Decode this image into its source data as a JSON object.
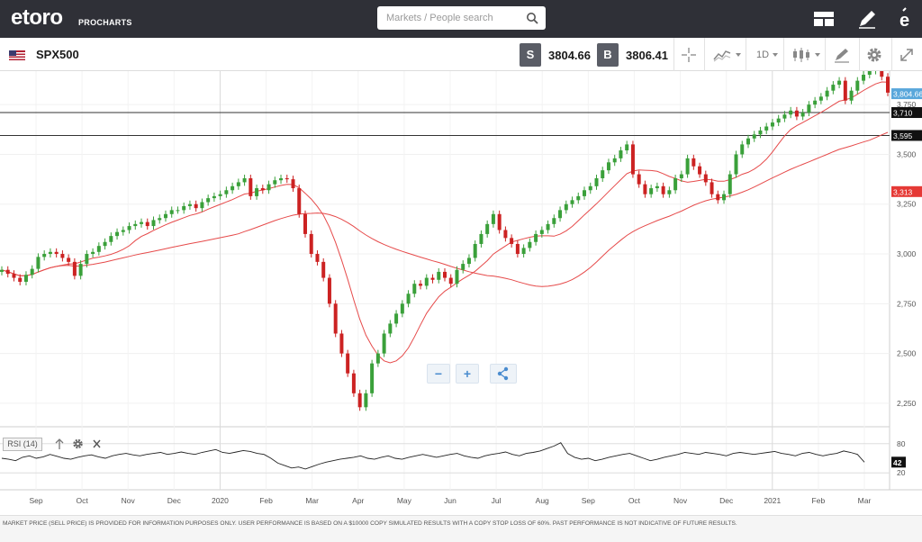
{
  "header": {
    "logo": "etoro",
    "logo_sub": "PROCHARTS",
    "search_placeholder": "Markets / People search"
  },
  "toolbar": {
    "symbol": "SPX500",
    "sell_label": "S",
    "sell_price": "3804.66",
    "buy_label": "B",
    "buy_price": "3806.41",
    "timeframe": "1D",
    "icons": [
      "crosshair-icon",
      "chart-type-icon",
      "indicators-icon",
      "drawing-icon",
      "settings-icon",
      "fullscreen-icon"
    ]
  },
  "chart_data": {
    "type": "line",
    "instrument": "SPX500",
    "style": "candlestick",
    "ylim": [
      2150,
      3900
    ],
    "y_ticks": [
      "3,750",
      "3,500",
      "3,250",
      "3,000",
      "2,750",
      "2,500",
      "2,250"
    ],
    "x_ticks": [
      "Sep",
      "Oct",
      "Nov",
      "Dec",
      "2020",
      "Feb",
      "Mar",
      "Apr",
      "May",
      "Jun",
      "Jul",
      "Aug",
      "Sep",
      "Oct",
      "Nov",
      "Dec",
      "2021",
      "Feb",
      "Mar"
    ],
    "price_labels": {
      "current": "3,804.66",
      "level_upper": "3,710",
      "level_lower": "3,595",
      "ma_long": "3,313"
    },
    "horizontal_levels": [
      3710,
      3595
    ],
    "series": [
      {
        "name": "Close",
        "values": [
          2920,
          2900,
          2880,
          2860,
          2895,
          2925,
          2985,
          3000,
          3010,
          3000,
          2980,
          2960,
          2890,
          2950,
          3000,
          3010,
          3040,
          3060,
          3090,
          3110,
          3120,
          3140,
          3150,
          3160,
          3140,
          3170,
          3180,
          3200,
          3220,
          3220,
          3240,
          3250,
          3230,
          3260,
          3280,
          3290,
          3300,
          3320,
          3340,
          3360,
          3380,
          3290,
          3330,
          3320,
          3350,
          3370,
          3380,
          3375,
          3330,
          3200,
          3100,
          3000,
          2960,
          2880,
          2750,
          2600,
          2500,
          2400,
          2300,
          2230,
          2300,
          2450,
          2500,
          2600,
          2650,
          2700,
          2750,
          2800,
          2850,
          2840,
          2880,
          2870,
          2910,
          2880,
          2850,
          2920,
          2950,
          2980,
          3050,
          3100,
          3150,
          3200,
          3120,
          3080,
          3050,
          3000,
          3030,
          3060,
          3100,
          3120,
          3150,
          3180,
          3220,
          3250,
          3270,
          3290,
          3320,
          3340,
          3380,
          3420,
          3460,
          3480,
          3520,
          3550,
          3400,
          3350,
          3300,
          3330,
          3340,
          3300,
          3320,
          3380,
          3400,
          3480,
          3440,
          3400,
          3360,
          3300,
          3270,
          3300,
          3400,
          3500,
          3550,
          3580,
          3600,
          3620,
          3640,
          3660,
          3680,
          3700,
          3720,
          3690,
          3710,
          3750,
          3770,
          3790,
          3820,
          3850,
          3870,
          3770,
          3820,
          3870,
          3900,
          3920,
          3930,
          3890,
          3810
        ]
      },
      {
        "name": "MA short"
      },
      {
        "name": "MA long"
      }
    ],
    "rsi": {
      "label": "RSI (14)",
      "period": 14,
      "levels": [
        "80",
        "20"
      ],
      "current": "42",
      "values": [
        50,
        48,
        45,
        52,
        55,
        50,
        53,
        58,
        54,
        50,
        48,
        52,
        55,
        57,
        53,
        50,
        55,
        58,
        60,
        57,
        55,
        58,
        60,
        62,
        58,
        60,
        63,
        60,
        58,
        62,
        65,
        68,
        62,
        60,
        63,
        66,
        64,
        60,
        58,
        50,
        40,
        35,
        30,
        32,
        28,
        33,
        38,
        42,
        45,
        48,
        50,
        52,
        55,
        50,
        48,
        52,
        55,
        50,
        48,
        52,
        55,
        58,
        55,
        52,
        55,
        58,
        60,
        55,
        52,
        50,
        55,
        58,
        60,
        63,
        58,
        55,
        60,
        62,
        65,
        70,
        75,
        82,
        60,
        52,
        48,
        50,
        45,
        48,
        52,
        55,
        58,
        60,
        55,
        50,
        45,
        48,
        52,
        55,
        58,
        62,
        60,
        58,
        62,
        60,
        58,
        55,
        60,
        62,
        60,
        58,
        60,
        62,
        64,
        60,
        58,
        55,
        60,
        62,
        58,
        55,
        58,
        60,
        65,
        62,
        58,
        42
      ]
    }
  },
  "controls": {
    "zoom_out": "−",
    "zoom_in": "+",
    "share_icon": "share-icon"
  },
  "rsi_controls": [
    "arrow-up-icon",
    "gear-icon",
    "close-icon"
  ],
  "disclaimer": "MARKET PRICE (SELL PRICE) IS PROVIDED FOR INFORMATION PURPOSES ONLY. USER PERFORMANCE IS BASED ON A $10000 COPY SIMULATED RESULTS WITH A COPY STOP LOSS OF 60%. PAST PERFORMANCE IS NOT INDICATIVE OF FUTURE RESULTS.",
  "colors": {
    "topbar": "#2f3037",
    "candle_up": "#3aa03a",
    "candle_down": "#cc2222",
    "ma_line": "#e64a4a",
    "current_price_label": "#59a7db",
    "ma_long_label": "#e53935",
    "level_label": "#111111"
  }
}
